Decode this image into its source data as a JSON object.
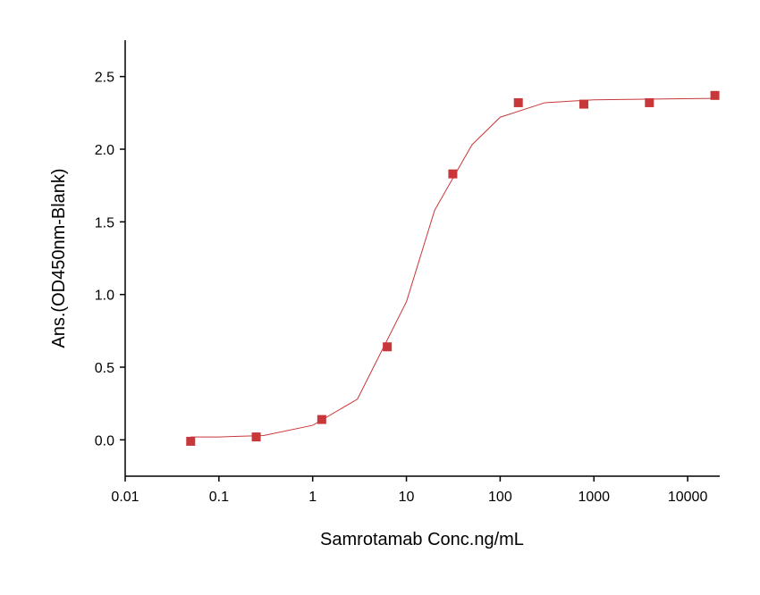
{
  "chart_data": {
    "type": "scatter",
    "xlabel": "Samrotamab Conc.ng/mL",
    "ylabel": "Ans.(OD450nm-Blank)",
    "x": [
      0.05,
      0.25,
      1.25,
      6.25,
      31.25,
      156.25,
      781.25,
      3906.25,
      19531.25
    ],
    "values": [
      -0.01,
      0.02,
      0.14,
      0.64,
      1.83,
      2.32,
      2.31,
      2.32,
      2.37
    ],
    "color": "#c8383a",
    "fit": {
      "x": [
        0.05,
        0.1,
        0.3,
        1,
        3,
        10,
        20,
        50,
        100,
        300,
        1000,
        20000
      ],
      "values": [
        0.02,
        0.02,
        0.03,
        0.1,
        0.28,
        0.95,
        1.58,
        2.03,
        2.22,
        2.32,
        2.34,
        2.35
      ],
      "color": "#c8383a"
    },
    "xlog": true,
    "xlim": [
      0.01,
      22000
    ],
    "ylim": [
      -0.25,
      2.75
    ],
    "xticks": [
      0.01,
      0.1,
      1,
      10,
      100,
      1000,
      10000
    ],
    "yticks": [
      {
        "value": 0,
        "label": "0.0"
      },
      {
        "value": 0.5,
        "label": "0.5"
      },
      {
        "value": 1,
        "label": "1.0"
      },
      {
        "value": 1.5,
        "label": "1.5"
      },
      {
        "value": 2,
        "label": "2.0"
      },
      {
        "value": 2.5,
        "label": "2.5"
      }
    ]
  }
}
